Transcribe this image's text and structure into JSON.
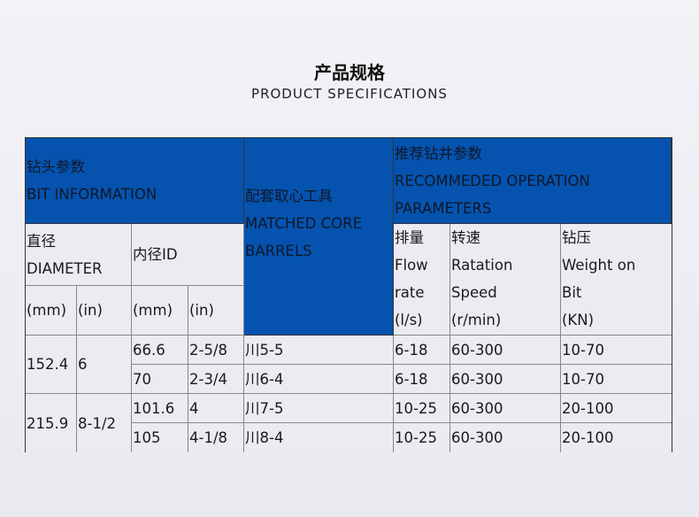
{
  "title": "产品规格",
  "subtitle": "PRODUCT SPECIFICATIONS",
  "header": {
    "bit_cn": "钻头参数",
    "bit_en": "BIT INFORMATION",
    "core_cn": "配套取心工具",
    "core_en1": "MATCHED CORE",
    "core_en2": "BARRELS",
    "rec_cn": "推荐钻井参数",
    "rec_en1": "RECOMMEDED OPERATION",
    "rec_en2": "PARAMETERS",
    "dia_cn": "直径",
    "dia_en": "DIAMETER",
    "id": "内径ID",
    "mm": "(mm)",
    "in": "(in)",
    "flow": [
      "排量",
      "Flow",
      "rate",
      "(l/s)"
    ],
    "speed": [
      "转速",
      "Ratation",
      "Speed",
      "(r/min)"
    ],
    "wob": [
      "钻压",
      "Weight on",
      "Bit",
      "(KN)"
    ]
  },
  "groups": [
    {
      "dia_mm": "152.4",
      "dia_in": "6"
    },
    {
      "dia_mm": "215.9",
      "dia_in": "8-1/2"
    }
  ],
  "rows": [
    {
      "id_mm": "66.6",
      "id_in": "2-5/8",
      "core": "川5-5",
      "flow": "6-18",
      "speed": "60-300",
      "wob": "10-70"
    },
    {
      "id_mm": "70",
      "id_in": "2-3/4",
      "core": "川6-4",
      "flow": "6-18",
      "speed": "60-300",
      "wob": "10-70"
    },
    {
      "id_mm": "101.6",
      "id_in": "4",
      "core": "川7-5",
      "flow": "10-25",
      "speed": "60-300",
      "wob": "20-100"
    },
    {
      "id_mm": "105",
      "id_in": "4-1/8",
      "core": "川8-4",
      "flow": "10-25",
      "speed": "60-300",
      "wob": "20-100"
    }
  ],
  "colors": {
    "header_blue": "#0553ae"
  }
}
